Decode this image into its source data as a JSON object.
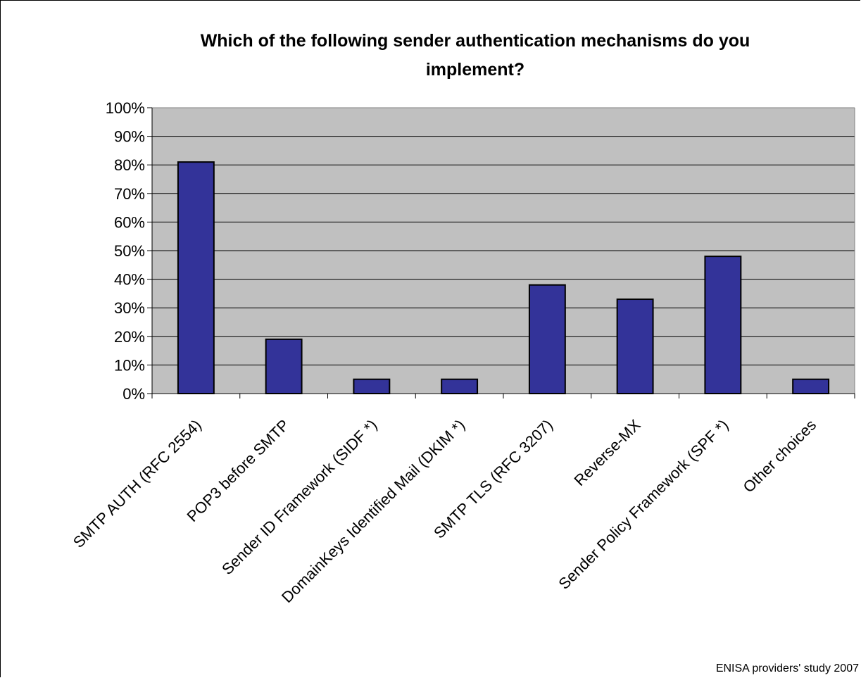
{
  "chart_data": {
    "type": "bar",
    "title_lines": [
      "Which of the following sender authentication mechanisms do you",
      "implement?"
    ],
    "categories": [
      "SMTP AUTH (RFC 2554)",
      "POP3 before SMTP",
      "Sender ID Framework (SIDF *)",
      "DomainKeys Identified Mail (DKIM *)",
      "SMTP TLS (RFC 3207)",
      "Reverse-MX",
      "Sender Policy Framework (SPF *)",
      "Other choices"
    ],
    "values": [
      81,
      19,
      5,
      5,
      38,
      33,
      48,
      5
    ],
    "y_ticks": [
      "0%",
      "10%",
      "20%",
      "30%",
      "40%",
      "50%",
      "60%",
      "70%",
      "80%",
      "90%",
      "100%"
    ],
    "ylim": [
      0,
      100
    ],
    "grid": true,
    "legend": "none",
    "colors": {
      "bar_fill": "#333399",
      "plot_bg": "#c0c0c0",
      "grid": "#000000"
    }
  },
  "footnote": "ENISA providers' study 2007"
}
